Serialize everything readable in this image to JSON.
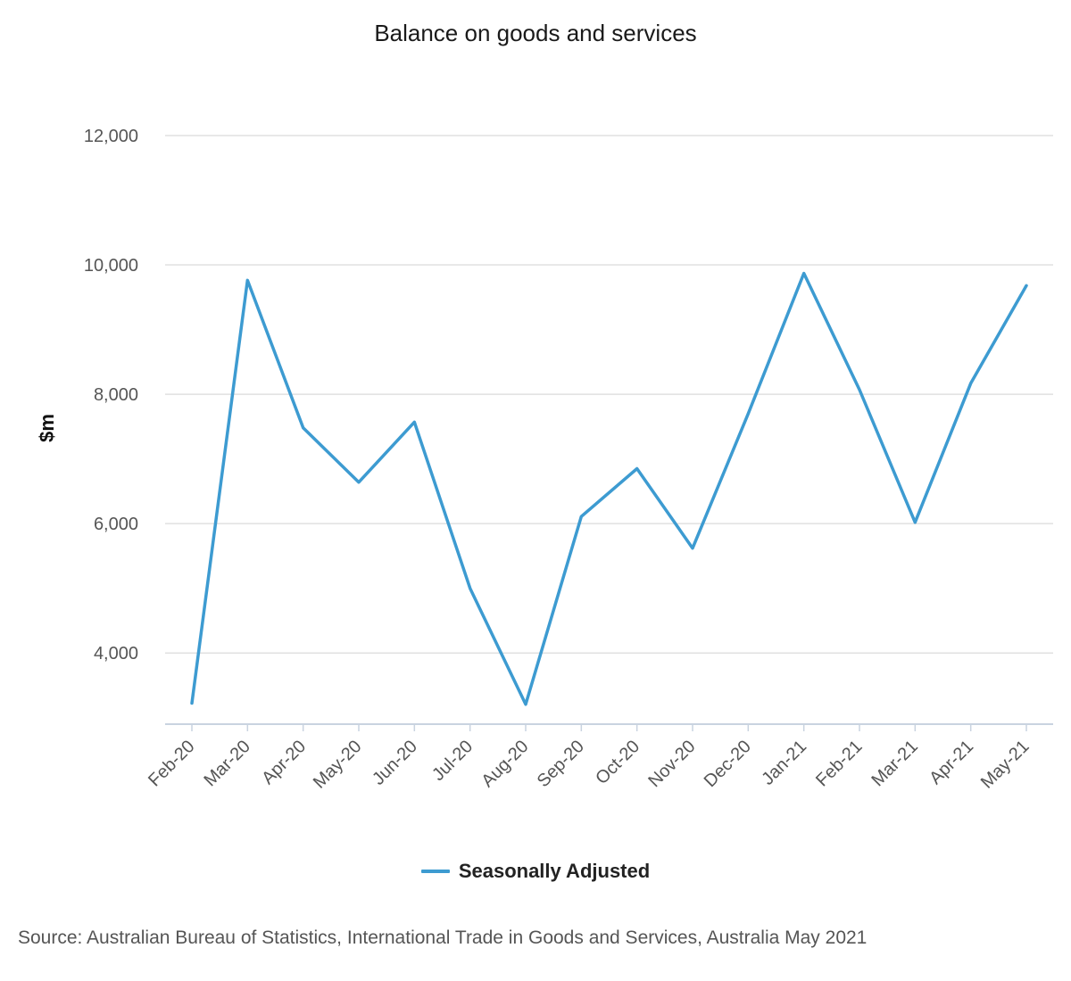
{
  "chart_data": {
    "type": "line",
    "title": "Balance on goods and services",
    "xlabel": "",
    "ylabel": "$m",
    "categories": [
      "Feb-20",
      "Mar-20",
      "Apr-20",
      "May-20",
      "Jun-20",
      "Jul-20",
      "Aug-20",
      "Sep-20",
      "Oct-20",
      "Nov-20",
      "Dec-20",
      "Jan-21",
      "Feb-21",
      "Mar-21",
      "Apr-21",
      "May-21"
    ],
    "series": [
      {
        "name": "Seasonally Adjusted",
        "color": "#3d9bd1",
        "values": [
          3224,
          9762,
          7480,
          6640,
          7570,
          5000,
          3206,
          6110,
          6850,
          5620,
          7700,
          9870,
          8070,
          6020,
          8170,
          9680
        ]
      }
    ],
    "ylim": [
      2900,
      12000
    ],
    "yticks": [
      4000,
      6000,
      8000,
      10000,
      12000
    ],
    "ytick_labels": [
      "4,000",
      "6,000",
      "8,000",
      "10,000",
      "12,000"
    ],
    "grid": true,
    "legend_position": "bottom-center",
    "source": "Source: Australian Bureau of Statistics, International Trade in Goods and Services, Australia May 2021"
  }
}
